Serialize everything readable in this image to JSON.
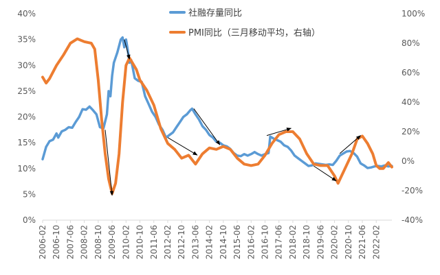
{
  "chart_data": {
    "type": "line",
    "legend_position": "top-center",
    "grid": false,
    "left_axis": {
      "min": 0,
      "max": 40,
      "step": 5,
      "ticks": [
        "0%",
        "5%",
        "10%",
        "15%",
        "20%",
        "25%",
        "30%",
        "35%",
        "40%"
      ]
    },
    "right_axis": {
      "min": -40,
      "max": 100,
      "step": 20,
      "ticks": [
        "-40%",
        "-20%",
        "0%",
        "20%",
        "40%",
        "60%",
        "80%",
        "100%"
      ]
    },
    "x_start": "2006-02",
    "x_end": "2022-11",
    "x_ticks": [
      "2006-02",
      "2006-10",
      "2007-06",
      "2008-02",
      "2008-10",
      "2009-06",
      "2010-02",
      "2010-10",
      "2011-06",
      "2012-02",
      "2012-10",
      "2013-06",
      "2014-02",
      "2014-10",
      "2015-06",
      "2016-02",
      "2016-10",
      "2017-06",
      "2018-02",
      "2018-10",
      "2019-06",
      "2020-02",
      "2020-10",
      "2021-06",
      "2022-02"
    ],
    "series": [
      {
        "name": "社融存量同比",
        "axis": "left",
        "color": "#5B9BD5",
        "points": [
          [
            "2006-02",
            11.8
          ],
          [
            "2006-04",
            14.2
          ],
          [
            "2006-06",
            15.3
          ],
          [
            "2006-08",
            15.6
          ],
          [
            "2006-10",
            16.8
          ],
          [
            "2006-11",
            16.0
          ],
          [
            "2007-01",
            17.2
          ],
          [
            "2007-03",
            17.5
          ],
          [
            "2007-05",
            18.0
          ],
          [
            "2007-07",
            17.9
          ],
          [
            "2007-09",
            19.0
          ],
          [
            "2007-11",
            20.0
          ],
          [
            "2008-01",
            21.5
          ],
          [
            "2008-03",
            21.4
          ],
          [
            "2008-05",
            22.0
          ],
          [
            "2008-07",
            21.3
          ],
          [
            "2008-09",
            20.5
          ],
          [
            "2008-11",
            18.0
          ],
          [
            "2009-01",
            17.8
          ],
          [
            "2009-03",
            20.5
          ],
          [
            "2009-04",
            25.0
          ],
          [
            "2009-05",
            24.0
          ],
          [
            "2009-06",
            28.0
          ],
          [
            "2009-07",
            30.5
          ],
          [
            "2009-09",
            32.5
          ],
          [
            "2009-11",
            35.0
          ],
          [
            "2009-12",
            35.4
          ],
          [
            "2010-01",
            33.5
          ],
          [
            "2010-02",
            35.0
          ],
          [
            "2010-03",
            33.0
          ],
          [
            "2010-04",
            30.5
          ],
          [
            "2010-05",
            31.0
          ],
          [
            "2010-07",
            27.5
          ],
          [
            "2010-09",
            27.0
          ],
          [
            "2010-11",
            26.8
          ],
          [
            "2011-01",
            24.0
          ],
          [
            "2011-03",
            22.5
          ],
          [
            "2011-05",
            21.0
          ],
          [
            "2011-07",
            20.0
          ],
          [
            "2011-09",
            18.5
          ],
          [
            "2011-11",
            17.5
          ],
          [
            "2012-01",
            16.0
          ],
          [
            "2012-03",
            16.5
          ],
          [
            "2012-05",
            17.0
          ],
          [
            "2012-07",
            18.0
          ],
          [
            "2012-09",
            19.0
          ],
          [
            "2012-11",
            20.0
          ],
          [
            "2013-01",
            20.5
          ],
          [
            "2013-03",
            21.3
          ],
          [
            "2013-04",
            21.6
          ],
          [
            "2013-06",
            20.5
          ],
          [
            "2013-08",
            19.5
          ],
          [
            "2013-10",
            18.2
          ],
          [
            "2013-12",
            17.5
          ],
          [
            "2014-02",
            16.5
          ],
          [
            "2014-04",
            16.0
          ],
          [
            "2014-06",
            15.2
          ],
          [
            "2014-08",
            15.0
          ],
          [
            "2014-10",
            14.5
          ],
          [
            "2014-12",
            14.3
          ],
          [
            "2015-02",
            13.8
          ],
          [
            "2015-04",
            13.0
          ],
          [
            "2015-06",
            12.5
          ],
          [
            "2015-08",
            12.4
          ],
          [
            "2015-10",
            12.8
          ],
          [
            "2015-12",
            12.5
          ],
          [
            "2016-02",
            12.8
          ],
          [
            "2016-04",
            13.2
          ],
          [
            "2016-06",
            12.8
          ],
          [
            "2016-08",
            12.5
          ],
          [
            "2016-10",
            12.8
          ],
          [
            "2016-12",
            13.0
          ],
          [
            "2017-01",
            16.2
          ],
          [
            "2017-03",
            15.8
          ],
          [
            "2017-05",
            15.5
          ],
          [
            "2017-07",
            15.2
          ],
          [
            "2017-09",
            14.5
          ],
          [
            "2017-11",
            14.2
          ],
          [
            "2018-01",
            13.5
          ],
          [
            "2018-03",
            12.5
          ],
          [
            "2018-05",
            12.0
          ],
          [
            "2018-07",
            11.5
          ],
          [
            "2018-09",
            11.0
          ],
          [
            "2018-11",
            10.5
          ],
          [
            "2019-01",
            10.6
          ],
          [
            "2019-03",
            11.0
          ],
          [
            "2019-05",
            10.9
          ],
          [
            "2019-07",
            10.8
          ],
          [
            "2019-09",
            10.7
          ],
          [
            "2019-11",
            10.8
          ],
          [
            "2020-01",
            10.7
          ],
          [
            "2020-03",
            11.5
          ],
          [
            "2020-05",
            12.5
          ],
          [
            "2020-07",
            12.9
          ],
          [
            "2020-09",
            13.3
          ],
          [
            "2020-11",
            13.4
          ],
          [
            "2021-01",
            13.0
          ],
          [
            "2021-03",
            12.3
          ],
          [
            "2021-05",
            11.0
          ],
          [
            "2021-07",
            10.6
          ],
          [
            "2021-09",
            10.1
          ],
          [
            "2021-11",
            10.2
          ],
          [
            "2022-01",
            10.4
          ],
          [
            "2022-03",
            10.5
          ],
          [
            "2022-05",
            10.4
          ],
          [
            "2022-07",
            10.6
          ],
          [
            "2022-09",
            10.4
          ],
          [
            "2022-11",
            10.5
          ]
        ]
      },
      {
        "name": "PMI同比（三月移动平均，右轴）",
        "axis": "right",
        "color": "#ED7D31",
        "points": [
          [
            "2006-02",
            57
          ],
          [
            "2006-04",
            53
          ],
          [
            "2006-06",
            56
          ],
          [
            "2006-10",
            65
          ],
          [
            "2007-02",
            72
          ],
          [
            "2007-06",
            80
          ],
          [
            "2007-10",
            83
          ],
          [
            "2008-02",
            81
          ],
          [
            "2008-06",
            80
          ],
          [
            "2008-08",
            76
          ],
          [
            "2008-10",
            55
          ],
          [
            "2008-12",
            28
          ],
          [
            "2009-02",
            5
          ],
          [
            "2009-04",
            -12
          ],
          [
            "2009-06",
            -22
          ],
          [
            "2009-08",
            -15
          ],
          [
            "2009-10",
            5
          ],
          [
            "2009-12",
            40
          ],
          [
            "2010-02",
            65
          ],
          [
            "2010-04",
            70
          ],
          [
            "2010-08",
            62
          ],
          [
            "2010-10",
            55
          ],
          [
            "2011-02",
            48
          ],
          [
            "2011-06",
            38
          ],
          [
            "2011-10",
            22
          ],
          [
            "2012-02",
            12
          ],
          [
            "2012-06",
            8
          ],
          [
            "2012-10",
            2
          ],
          [
            "2013-02",
            4
          ],
          [
            "2013-06",
            -2
          ],
          [
            "2013-10",
            5
          ],
          [
            "2014-02",
            9
          ],
          [
            "2014-06",
            8
          ],
          [
            "2014-10",
            10
          ],
          [
            "2015-02",
            8
          ],
          [
            "2015-06",
            2
          ],
          [
            "2015-10",
            -2
          ],
          [
            "2016-02",
            -3
          ],
          [
            "2016-06",
            -2
          ],
          [
            "2016-10",
            4
          ],
          [
            "2017-02",
            12
          ],
          [
            "2017-06",
            18
          ],
          [
            "2017-10",
            20
          ],
          [
            "2018-02",
            20
          ],
          [
            "2018-06",
            15
          ],
          [
            "2018-10",
            5
          ],
          [
            "2019-02",
            -2
          ],
          [
            "2019-06",
            -3
          ],
          [
            "2019-10",
            -3
          ],
          [
            "2020-02",
            -10
          ],
          [
            "2020-04",
            -15
          ],
          [
            "2020-08",
            -5
          ],
          [
            "2020-12",
            5
          ],
          [
            "2021-03",
            15
          ],
          [
            "2021-06",
            17
          ],
          [
            "2021-09",
            12
          ],
          [
            "2021-12",
            5
          ],
          [
            "2022-02",
            -3
          ],
          [
            "2022-04",
            -5
          ],
          [
            "2022-06",
            -5
          ],
          [
            "2022-09",
            -1
          ],
          [
            "2022-11",
            -4
          ]
        ]
      }
    ],
    "annotations": [
      {
        "type": "arrow",
        "axis": "left",
        "from": [
          "2009-02",
          17.5
        ],
        "to": [
          "2009-06",
          4.8
        ]
      },
      {
        "type": "arrow",
        "axis": "left",
        "from": [
          "2010-01",
          35.0
        ],
        "to": [
          "2010-04",
          31.2
        ]
      },
      {
        "type": "arrow",
        "axis": "left",
        "from": [
          "2012-02",
          16.0
        ],
        "to": [
          "2013-07",
          12.6
        ]
      },
      {
        "type": "arrow",
        "axis": "left",
        "from": [
          "2013-05",
          21.6
        ],
        "to": [
          "2014-08",
          14.6
        ]
      },
      {
        "type": "arrow",
        "axis": "left",
        "from": [
          "2016-11",
          16.4
        ],
        "to": [
          "2018-01",
          17.8
        ]
      },
      {
        "type": "arrow",
        "axis": "left",
        "from": [
          "2019-02",
          10.5
        ],
        "to": [
          "2020-03",
          7.6
        ]
      },
      {
        "type": "arrow",
        "axis": "left",
        "from": [
          "2020-05",
          12.9
        ],
        "to": [
          "2021-05",
          16.4
        ]
      }
    ]
  }
}
